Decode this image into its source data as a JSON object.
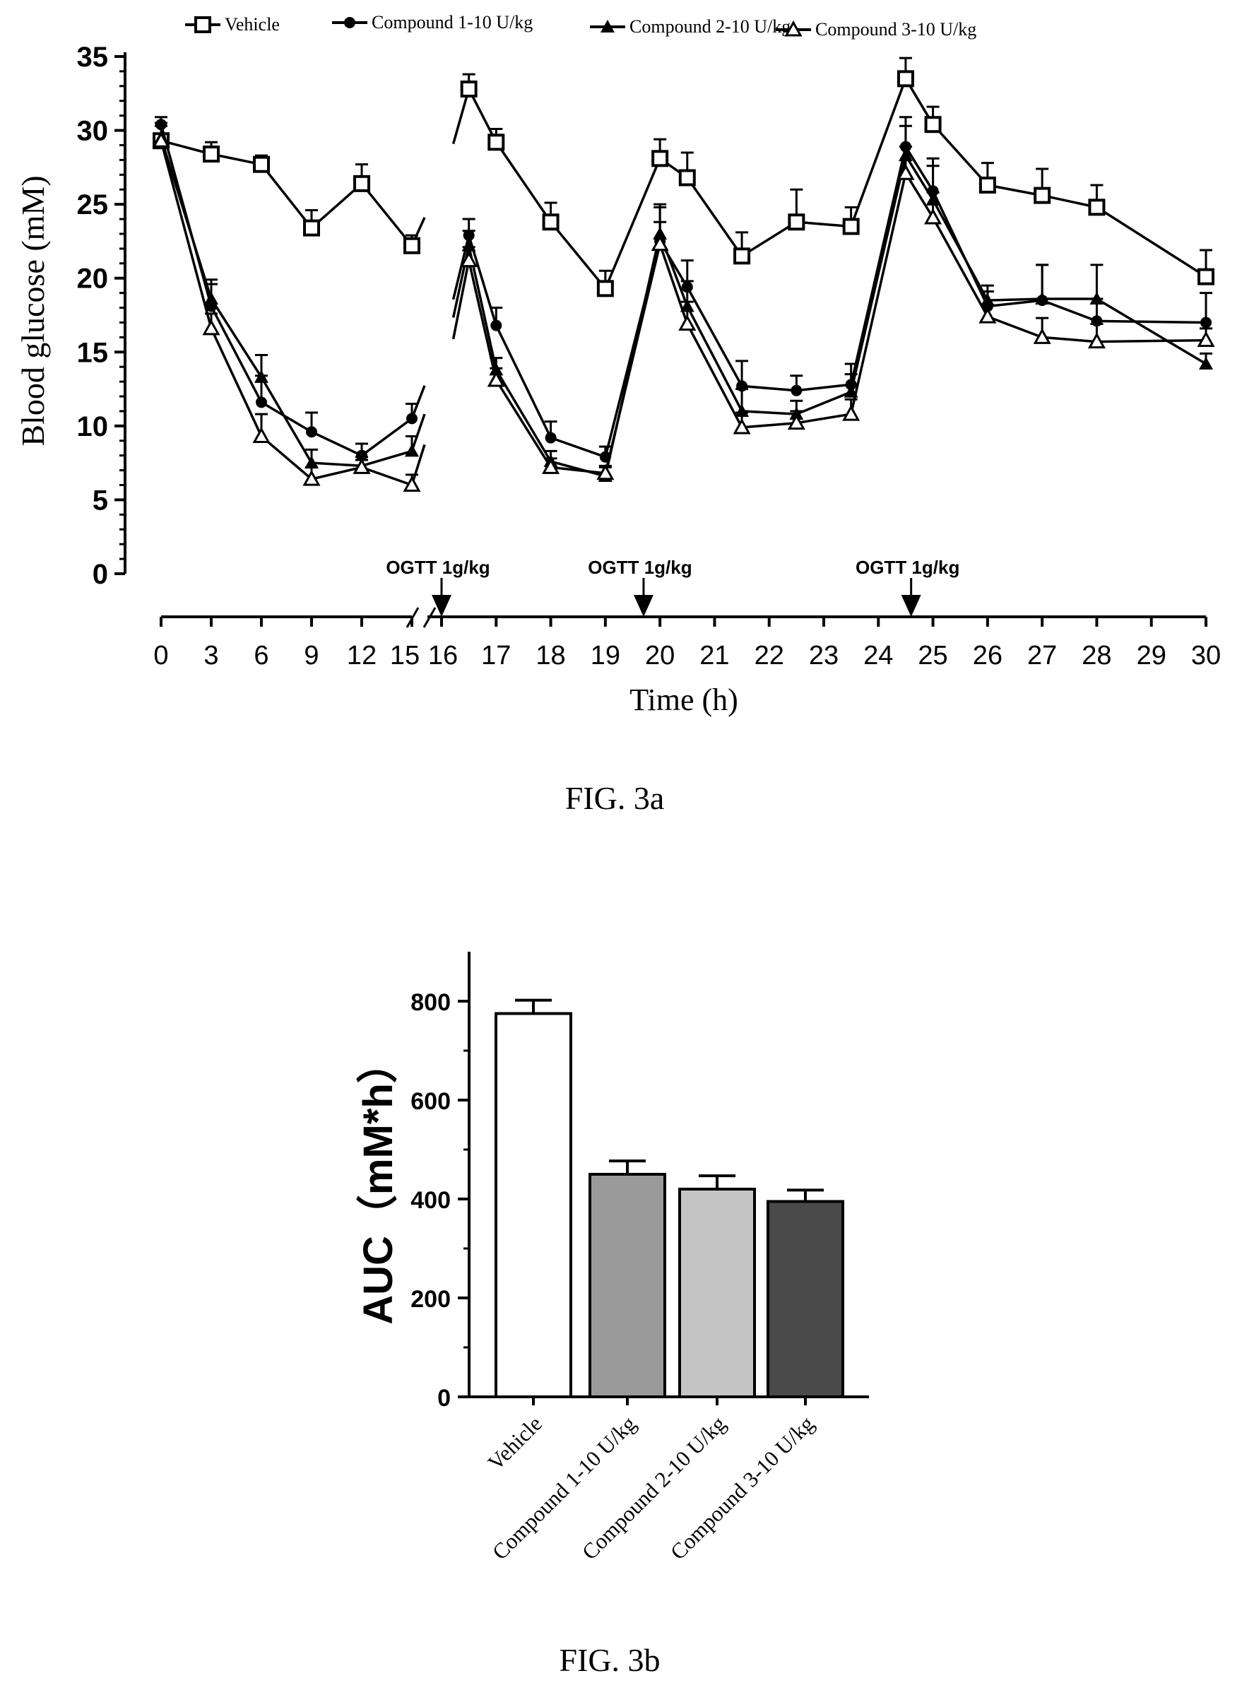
{
  "colors": {
    "ink": "#000000",
    "bg": "#ffffff"
  },
  "chart_data": [
    {
      "type": "line",
      "figure_label": "FIG. 3a",
      "xlabel": "Time (h)",
      "ylabel": "Blood glucose (mM)",
      "ylim": [
        0,
        35
      ],
      "yticks": [
        0,
        5,
        10,
        15,
        20,
        25,
        30,
        35
      ],
      "xticks": [
        "0",
        "3",
        "6",
        "9",
        "12",
        "15",
        "16",
        "17",
        "18",
        "19",
        "20",
        "21",
        "22",
        "23",
        "24",
        "25",
        "26",
        "27",
        "28",
        "29",
        "30"
      ],
      "x": [
        "0",
        "3",
        "6",
        "9",
        "12",
        "15",
        "16.5",
        "17",
        "18",
        "19",
        "20",
        "20.5",
        "21.5",
        "22.5",
        "23.5",
        "24.5",
        "25",
        "26",
        "27",
        "28",
        "30"
      ],
      "legend_position": "top",
      "annotations": [
        {
          "text": "OGTT 1g/kg",
          "x": "16"
        },
        {
          "text": "OGTT 1g/kg",
          "x": "19.7"
        },
        {
          "text": "OGTT 1g/kg",
          "x": "24.6"
        }
      ],
      "series": [
        {
          "name": "Vehicle",
          "marker": "open-square",
          "color": "#000000",
          "values": [
            29.3,
            28.4,
            27.7,
            23.4,
            26.4,
            22.2,
            32.8,
            29.2,
            23.8,
            19.3,
            28.1,
            26.8,
            21.5,
            23.8,
            23.5,
            33.5,
            30.4,
            26.3,
            25.6,
            24.8,
            20.1
          ],
          "errors": [
            1.2,
            0.8,
            0.6,
            1.2,
            1.3,
            0.7,
            1.0,
            0.9,
            1.3,
            1.2,
            1.3,
            1.7,
            1.6,
            2.2,
            1.3,
            1.4,
            1.2,
            1.5,
            1.8,
            1.5,
            1.8
          ]
        },
        {
          "name": "Compound 1-10 U/kg",
          "marker": "filled-circle",
          "color": "#000000",
          "values": [
            30.4,
            18.1,
            11.6,
            9.6,
            8.0,
            10.5,
            22.9,
            16.8,
            9.2,
            7.9,
            22.5,
            19.4,
            12.7,
            12.4,
            12.8,
            28.9,
            25.9,
            18.1,
            18.5,
            17.1,
            17.0
          ],
          "errors": [
            0.5,
            1.5,
            1.8,
            1.3,
            0.8,
            1.0,
            1.1,
            1.2,
            1.1,
            0.7,
            2.5,
            1.8,
            1.7,
            1.0,
            1.4,
            2.0,
            2.2,
            1.0,
            2.4,
            1.5,
            2.0
          ]
        },
        {
          "name": "Compound 2-10 U/kg",
          "marker": "filled-triangle",
          "color": "#000000",
          "values": [
            29.5,
            18.6,
            13.3,
            7.5,
            7.3,
            8.3,
            22.2,
            13.8,
            7.6,
            6.6,
            23.0,
            18.1,
            11.0,
            10.8,
            12.3,
            28.3,
            25.3,
            18.5,
            18.6,
            18.6,
            14.2
          ],
          "errors": [
            1.0,
            1.3,
            1.5,
            0.9,
            0.6,
            1.0,
            1.0,
            0.8,
            0.7,
            0.6,
            1.8,
            1.7,
            1.5,
            0.9,
            1.2,
            2.0,
            2.3,
            1.0,
            2.3,
            2.3,
            0.7
          ]
        },
        {
          "name": "Compound 3-10 U/kg",
          "marker": "open-triangle",
          "color": "#000000",
          "values": [
            29.3,
            16.6,
            9.3,
            6.4,
            7.2,
            6.0,
            21.2,
            13.1,
            7.2,
            6.8,
            22.3,
            16.9,
            9.9,
            10.2,
            10.8,
            27.1,
            24.1,
            17.4,
            16.0,
            15.7,
            15.8
          ],
          "errors": [
            1.0,
            1.0,
            1.5,
            0.8,
            0.5,
            0.7,
            0.9,
            0.8,
            0.6,
            0.5,
            1.5,
            1.5,
            1.0,
            0.8,
            1.0,
            1.8,
            1.7,
            0.8,
            1.3,
            1.2,
            0.8
          ]
        }
      ]
    },
    {
      "type": "bar",
      "figure_label": "FIG. 3b",
      "ylabel": "AUC（mM*h）",
      "ylim": [
        0,
        900
      ],
      "yticks": [
        0,
        200,
        400,
        600,
        800
      ],
      "categories": [
        "Vehicle",
        "Compound 1-10 U/kg",
        "Compound 2-10 U/kg",
        "Compound 3-10 U/kg"
      ],
      "values": [
        775,
        450,
        420,
        395
      ],
      "errors": [
        27,
        27,
        27,
        23
      ],
      "fills": [
        "#ffffff",
        "#9a9a9a",
        "#c4c4c4",
        "#4a4a4a"
      ]
    }
  ]
}
